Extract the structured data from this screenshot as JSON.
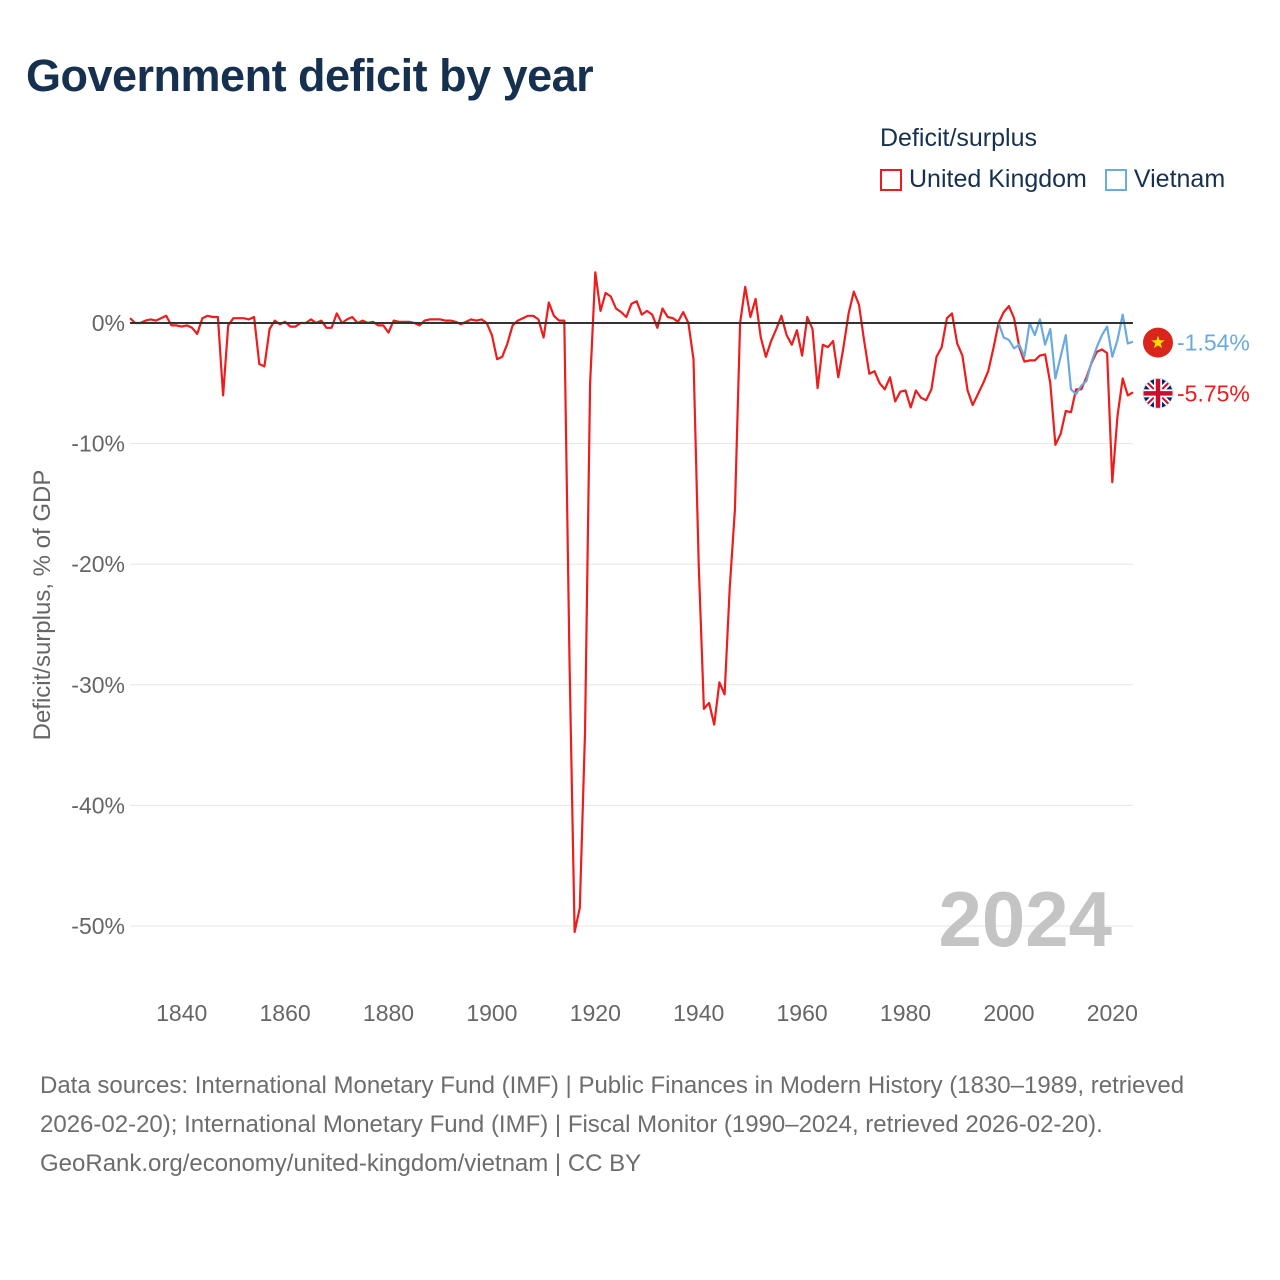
{
  "chart_data": {
    "type": "line",
    "title": "Government deficit by year",
    "ylabel": "Deficit/surplus, % of GDP",
    "xlabel": "",
    "xlim": [
      1830,
      2024
    ],
    "ylim": [
      -55,
      5
    ],
    "y_ticks": [
      0,
      -10,
      -20,
      -30,
      -40,
      -50
    ],
    "y_tick_labels": [
      "0%",
      "-10%",
      "-20%",
      "-30%",
      "-40%",
      "-50%"
    ],
    "x_ticks": [
      1840,
      1860,
      1880,
      1900,
      1920,
      1940,
      1960,
      1980,
      2000,
      2020
    ],
    "x_tick_labels": [
      "1840",
      "1860",
      "1880",
      "1900",
      "1920",
      "1940",
      "1960",
      "1980",
      "2000",
      "2020"
    ],
    "year_watermark": "2024",
    "legend_title": "Deficit/surplus",
    "series": [
      {
        "name": "United Kingdom",
        "color": "#ee1c1c",
        "end_label": "-5.75%",
        "points": [
          [
            1830,
            0.4
          ],
          [
            1831,
            0.0
          ],
          [
            1832,
            0.0
          ],
          [
            1833,
            0.2
          ],
          [
            1834,
            0.3
          ],
          [
            1835,
            0.2
          ],
          [
            1836,
            0.4
          ],
          [
            1837,
            0.6
          ],
          [
            1838,
            -0.2
          ],
          [
            1839,
            -0.2
          ],
          [
            1840,
            -0.3
          ],
          [
            1841,
            -0.2
          ],
          [
            1842,
            -0.4
          ],
          [
            1843,
            -0.9
          ],
          [
            1844,
            0.4
          ],
          [
            1845,
            0.6
          ],
          [
            1846,
            0.5
          ],
          [
            1847,
            0.5
          ],
          [
            1848,
            -6.0
          ],
          [
            1849,
            -0.2
          ],
          [
            1850,
            0.4
          ],
          [
            1851,
            0.4
          ],
          [
            1852,
            0.4
          ],
          [
            1853,
            0.3
          ],
          [
            1854,
            0.5
          ],
          [
            1855,
            -3.4
          ],
          [
            1856,
            -3.6
          ],
          [
            1857,
            -0.5
          ],
          [
            1858,
            0.2
          ],
          [
            1859,
            -0.1
          ],
          [
            1860,
            0.1
          ],
          [
            1861,
            -0.3
          ],
          [
            1862,
            -0.3
          ],
          [
            1863,
            0.0
          ],
          [
            1864,
            0.0
          ],
          [
            1865,
            0.3
          ],
          [
            1866,
            0.0
          ],
          [
            1867,
            0.2
          ],
          [
            1868,
            -0.4
          ],
          [
            1869,
            -0.4
          ],
          [
            1870,
            0.8
          ],
          [
            1871,
            0.0
          ],
          [
            1872,
            0.3
          ],
          [
            1873,
            0.5
          ],
          [
            1874,
            0.0
          ],
          [
            1875,
            0.2
          ],
          [
            1876,
            0.0
          ],
          [
            1877,
            0.1
          ],
          [
            1878,
            -0.2
          ],
          [
            1879,
            -0.2
          ],
          [
            1880,
            -0.8
          ],
          [
            1881,
            0.2
          ],
          [
            1882,
            0.1
          ],
          [
            1883,
            0.1
          ],
          [
            1884,
            0.1
          ],
          [
            1885,
            0.0
          ],
          [
            1886,
            -0.2
          ],
          [
            1887,
            0.2
          ],
          [
            1888,
            0.3
          ],
          [
            1889,
            0.3
          ],
          [
            1890,
            0.3
          ],
          [
            1891,
            0.2
          ],
          [
            1892,
            0.2
          ],
          [
            1893,
            0.1
          ],
          [
            1894,
            -0.1
          ],
          [
            1895,
            0.1
          ],
          [
            1896,
            0.3
          ],
          [
            1897,
            0.2
          ],
          [
            1898,
            0.3
          ],
          [
            1899,
            0.0
          ],
          [
            1900,
            -1.0
          ],
          [
            1901,
            -3.0
          ],
          [
            1902,
            -2.8
          ],
          [
            1903,
            -1.7
          ],
          [
            1904,
            -0.2
          ],
          [
            1905,
            0.2
          ],
          [
            1906,
            0.4
          ],
          [
            1907,
            0.6
          ],
          [
            1908,
            0.6
          ],
          [
            1909,
            0.3
          ],
          [
            1910,
            -1.2
          ],
          [
            1911,
            1.7
          ],
          [
            1912,
            0.6
          ],
          [
            1913,
            0.2
          ],
          [
            1914,
            0.2
          ],
          [
            1915,
            -28.0
          ],
          [
            1916,
            -50.5
          ],
          [
            1917,
            -48.5
          ],
          [
            1918,
            -34.0
          ],
          [
            1919,
            -5.0
          ],
          [
            1920,
            4.2
          ],
          [
            1921,
            1.0
          ],
          [
            1922,
            2.5
          ],
          [
            1923,
            2.2
          ],
          [
            1924,
            1.2
          ],
          [
            1925,
            0.9
          ],
          [
            1926,
            0.5
          ],
          [
            1927,
            1.6
          ],
          [
            1928,
            1.8
          ],
          [
            1929,
            0.7
          ],
          [
            1930,
            1.0
          ],
          [
            1931,
            0.7
          ],
          [
            1932,
            -0.4
          ],
          [
            1933,
            1.2
          ],
          [
            1934,
            0.5
          ],
          [
            1935,
            0.4
          ],
          [
            1936,
            0.1
          ],
          [
            1937,
            0.9
          ],
          [
            1938,
            0.0
          ],
          [
            1939,
            -3.0
          ],
          [
            1940,
            -20.0
          ],
          [
            1941,
            -32.0
          ],
          [
            1942,
            -31.5
          ],
          [
            1943,
            -33.3
          ],
          [
            1944,
            -29.8
          ],
          [
            1945,
            -30.8
          ],
          [
            1946,
            -22.0
          ],
          [
            1947,
            -15.5
          ],
          [
            1948,
            0.0
          ],
          [
            1949,
            3.0
          ],
          [
            1950,
            0.5
          ],
          [
            1951,
            2.0
          ],
          [
            1952,
            -1.2
          ],
          [
            1953,
            -2.8
          ],
          [
            1954,
            -1.5
          ],
          [
            1955,
            -0.5
          ],
          [
            1956,
            0.6
          ],
          [
            1957,
            -1.0
          ],
          [
            1958,
            -1.8
          ],
          [
            1959,
            -0.6
          ],
          [
            1960,
            -2.7
          ],
          [
            1961,
            0.5
          ],
          [
            1962,
            -0.5
          ],
          [
            1963,
            -5.4
          ],
          [
            1964,
            -1.8
          ],
          [
            1965,
            -2.0
          ],
          [
            1966,
            -1.5
          ],
          [
            1967,
            -4.5
          ],
          [
            1968,
            -2.0
          ],
          [
            1969,
            0.8
          ],
          [
            1970,
            2.6
          ],
          [
            1971,
            1.5
          ],
          [
            1972,
            -1.5
          ],
          [
            1973,
            -4.2
          ],
          [
            1974,
            -4.0
          ],
          [
            1975,
            -5.0
          ],
          [
            1976,
            -5.5
          ],
          [
            1977,
            -4.5
          ],
          [
            1978,
            -6.5
          ],
          [
            1979,
            -5.7
          ],
          [
            1980,
            -5.6
          ],
          [
            1981,
            -7.0
          ],
          [
            1982,
            -5.6
          ],
          [
            1983,
            -6.2
          ],
          [
            1984,
            -6.4
          ],
          [
            1985,
            -5.5
          ],
          [
            1986,
            -2.8
          ],
          [
            1987,
            -2.0
          ],
          [
            1988,
            0.4
          ],
          [
            1989,
            0.8
          ],
          [
            1990,
            -1.7
          ],
          [
            1991,
            -2.7
          ],
          [
            1992,
            -5.6
          ],
          [
            1993,
            -6.8
          ],
          [
            1994,
            -5.9
          ],
          [
            1995,
            -5.0
          ],
          [
            1996,
            -4.0
          ],
          [
            1997,
            -2.1
          ],
          [
            1998,
            0.0
          ],
          [
            1999,
            0.9
          ],
          [
            2000,
            1.4
          ],
          [
            2001,
            0.4
          ],
          [
            2002,
            -2.0
          ],
          [
            2003,
            -3.2
          ],
          [
            2004,
            -3.1
          ],
          [
            2005,
            -3.1
          ],
          [
            2006,
            -2.7
          ],
          [
            2007,
            -2.6
          ],
          [
            2008,
            -5.0
          ],
          [
            2009,
            -10.1
          ],
          [
            2010,
            -9.2
          ],
          [
            2011,
            -7.3
          ],
          [
            2012,
            -7.4
          ],
          [
            2013,
            -5.5
          ],
          [
            2014,
            -5.5
          ],
          [
            2015,
            -4.5
          ],
          [
            2016,
            -3.3
          ],
          [
            2017,
            -2.4
          ],
          [
            2018,
            -2.2
          ],
          [
            2019,
            -2.5
          ],
          [
            2020,
            -13.2
          ],
          [
            2021,
            -7.7
          ],
          [
            2022,
            -4.6
          ],
          [
            2023,
            -6.0
          ],
          [
            2024,
            -5.75
          ]
        ]
      },
      {
        "name": "Vietnam",
        "color": "#6aaae0",
        "end_label": "-1.54%",
        "points": [
          [
            1998,
            0.0
          ],
          [
            1999,
            -1.2
          ],
          [
            2000,
            -1.4
          ],
          [
            2001,
            -2.1
          ],
          [
            2002,
            -1.8
          ],
          [
            2003,
            -2.8
          ],
          [
            2004,
            0.0
          ],
          [
            2005,
            -1.0
          ],
          [
            2006,
            0.3
          ],
          [
            2007,
            -1.8
          ],
          [
            2008,
            -0.5
          ],
          [
            2009,
            -4.6
          ],
          [
            2010,
            -2.8
          ],
          [
            2011,
            -1.0
          ],
          [
            2012,
            -5.5
          ],
          [
            2013,
            -5.9
          ],
          [
            2014,
            -5.2
          ],
          [
            2015,
            -4.8
          ],
          [
            2016,
            -3.2
          ],
          [
            2017,
            -2.0
          ],
          [
            2018,
            -1.0
          ],
          [
            2019,
            -0.3
          ],
          [
            2020,
            -2.8
          ],
          [
            2021,
            -1.4
          ],
          [
            2022,
            0.7
          ],
          [
            2023,
            -1.7
          ],
          [
            2024,
            -1.54
          ]
        ]
      }
    ]
  },
  "footer": {
    "sources": "Data sources: International Monetary Fund (IMF) | Public Finances in Modern History (1830–1989, retrieved 2026-02-20); International Monetary Fund (IMF) | Fiscal Monitor (1990–2024, retrieved 2026-02-20).",
    "credit": "GeoRank.org/economy/united-kingdom/vietnam | CC BY"
  },
  "icons": {
    "vietnam": "vietnam-flag-icon",
    "uk": "uk-flag-icon"
  }
}
